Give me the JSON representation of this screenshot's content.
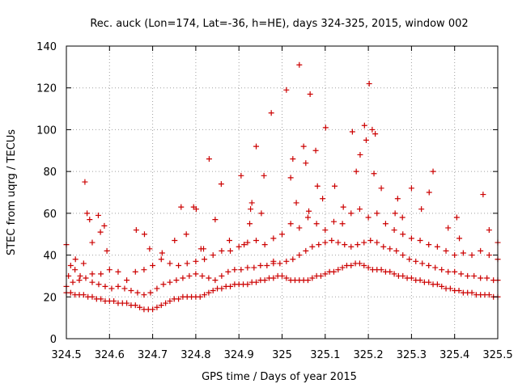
{
  "chart_data": {
    "type": "scatter",
    "title": "Rec. auck (Lon=174, Lat=-36, h=HE), days 324-325, 2015, window 002",
    "xlabel": "GPS time / Days of year 2015",
    "ylabel": "STEC from uqrg / TECUs",
    "xlim": [
      324.5,
      325.5
    ],
    "ylim": [
      0,
      140
    ],
    "x_ticks": [
      324.5,
      324.6,
      324.7,
      324.8,
      324.9,
      325.0,
      325.1,
      325.2,
      325.3,
      325.4,
      325.5
    ],
    "x_tick_labels": [
      "324.5",
      "324.6",
      "324.7",
      "324.8",
      "324.9",
      "325",
      "325.1",
      "325.2",
      "325.3",
      "325.4",
      "325.5"
    ],
    "y_ticks": [
      0,
      20,
      40,
      60,
      80,
      100,
      120,
      140
    ],
    "y_tick_labels": [
      "0",
      "20",
      "40",
      "60",
      "80",
      "100",
      "120",
      "140"
    ],
    "grid": true,
    "legend": "none",
    "marker": "plus",
    "color": "#cc0000",
    "series": [
      {
        "points": [
          [
            324.5,
            45
          ],
          [
            324.51,
            35
          ],
          [
            324.521,
            38
          ],
          [
            324.532,
            30
          ],
          [
            324.543,
            75
          ],
          [
            324.548,
            60
          ],
          [
            324.554,
            57
          ],
          [
            324.56,
            46
          ],
          [
            324.574,
            59
          ],
          [
            324.579,
            51
          ],
          [
            324.588,
            54
          ],
          [
            324.594,
            42
          ],
          [
            324.662,
            52
          ],
          [
            324.681,
            50
          ],
          [
            324.693,
            43
          ],
          [
            324.722,
            41
          ],
          [
            324.751,
            47
          ],
          [
            324.766,
            63
          ],
          [
            324.778,
            50
          ],
          [
            324.795,
            63
          ],
          [
            324.801,
            62
          ],
          [
            324.812,
            43
          ],
          [
            324.818,
            43
          ],
          [
            324.831,
            86
          ],
          [
            324.845,
            57
          ],
          [
            324.859,
            74
          ],
          [
            324.878,
            47
          ],
          [
            324.905,
            78
          ],
          [
            324.912,
            45
          ],
          [
            324.925,
            55
          ],
          [
            324.927,
            62
          ],
          [
            324.93,
            65
          ],
          [
            324.94,
            92
          ],
          [
            324.952,
            60
          ],
          [
            324.958,
            78
          ],
          [
            324.975,
            108
          ],
          [
            324.98,
            37
          ],
          [
            325.01,
            119
          ],
          [
            325.02,
            77
          ],
          [
            325.025,
            86
          ],
          [
            325.033,
            65
          ],
          [
            325.04,
            131
          ],
          [
            325.05,
            92
          ],
          [
            325.055,
            84
          ],
          [
            325.062,
            61
          ],
          [
            325.065,
            117
          ],
          [
            325.078,
            90
          ],
          [
            325.082,
            73
          ],
          [
            325.094,
            67
          ],
          [
            325.101,
            101
          ],
          [
            325.122,
            73
          ],
          [
            325.142,
            63
          ],
          [
            325.163,
            99
          ],
          [
            325.172,
            80
          ],
          [
            325.181,
            88
          ],
          [
            325.191,
            102
          ],
          [
            325.195,
            95
          ],
          [
            325.202,
            122
          ],
          [
            325.209,
            100
          ],
          [
            325.213,
            79
          ],
          [
            325.216,
            98
          ],
          [
            325.23,
            72
          ],
          [
            325.262,
            60
          ],
          [
            325.268,
            67
          ],
          [
            325.279,
            58
          ],
          [
            325.3,
            72
          ],
          [
            325.323,
            62
          ],
          [
            325.341,
            70
          ],
          [
            325.35,
            80
          ],
          [
            325.385,
            53
          ],
          [
            325.405,
            58
          ],
          [
            325.411,
            48
          ],
          [
            325.466,
            69
          ],
          [
            325.48,
            52
          ],
          [
            325.5,
            46
          ],
          [
            324.505,
            30
          ],
          [
            324.52,
            33
          ],
          [
            324.54,
            36
          ],
          [
            324.56,
            31
          ],
          [
            324.58,
            31
          ],
          [
            324.6,
            33
          ],
          [
            324.62,
            32
          ],
          [
            324.64,
            28
          ],
          [
            324.66,
            32
          ],
          [
            324.68,
            33
          ],
          [
            324.7,
            35
          ],
          [
            324.72,
            38
          ],
          [
            324.74,
            36
          ],
          [
            324.76,
            35
          ],
          [
            324.78,
            36
          ],
          [
            324.8,
            37
          ],
          [
            324.82,
            38
          ],
          [
            324.84,
            40
          ],
          [
            324.86,
            42
          ],
          [
            324.88,
            42
          ],
          [
            324.9,
            44
          ],
          [
            324.92,
            46
          ],
          [
            324.94,
            47
          ],
          [
            324.96,
            45
          ],
          [
            324.98,
            48
          ],
          [
            325.0,
            50
          ],
          [
            325.02,
            55
          ],
          [
            325.04,
            53
          ],
          [
            325.06,
            58
          ],
          [
            325.08,
            55
          ],
          [
            325.1,
            52
          ],
          [
            325.12,
            56
          ],
          [
            325.14,
            55
          ],
          [
            325.16,
            60
          ],
          [
            325.18,
            62
          ],
          [
            325.2,
            58
          ],
          [
            325.22,
            60
          ],
          [
            325.24,
            55
          ],
          [
            325.26,
            52
          ],
          [
            325.28,
            50
          ],
          [
            325.3,
            48
          ],
          [
            325.32,
            47
          ],
          [
            325.34,
            45
          ],
          [
            325.36,
            44
          ],
          [
            325.38,
            42
          ],
          [
            325.4,
            40
          ],
          [
            325.42,
            41
          ],
          [
            325.44,
            40
          ],
          [
            325.46,
            42
          ],
          [
            325.48,
            40
          ],
          [
            325.5,
            38
          ],
          [
            324.5,
            25
          ],
          [
            324.515,
            27
          ],
          [
            324.53,
            28
          ],
          [
            324.545,
            29
          ],
          [
            324.56,
            27
          ],
          [
            324.575,
            26
          ],
          [
            324.59,
            25
          ],
          [
            324.605,
            24
          ],
          [
            324.62,
            25
          ],
          [
            324.635,
            24
          ],
          [
            324.65,
            23
          ],
          [
            324.665,
            22
          ],
          [
            324.68,
            21
          ],
          [
            324.695,
            22
          ],
          [
            324.71,
            24
          ],
          [
            324.725,
            26
          ],
          [
            324.74,
            27
          ],
          [
            324.755,
            28
          ],
          [
            324.77,
            29
          ],
          [
            324.785,
            30
          ],
          [
            324.8,
            31
          ],
          [
            324.815,
            30
          ],
          [
            324.83,
            29
          ],
          [
            324.845,
            28
          ],
          [
            324.86,
            30
          ],
          [
            324.875,
            32
          ],
          [
            324.89,
            33
          ],
          [
            324.905,
            33
          ],
          [
            324.92,
            34
          ],
          [
            324.935,
            34
          ],
          [
            324.95,
            35
          ],
          [
            324.965,
            35
          ],
          [
            324.98,
            36
          ],
          [
            324.995,
            36
          ],
          [
            325.01,
            37
          ],
          [
            325.025,
            38
          ],
          [
            325.04,
            40
          ],
          [
            325.055,
            42
          ],
          [
            325.07,
            44
          ],
          [
            325.085,
            45
          ],
          [
            325.1,
            46
          ],
          [
            325.115,
            47
          ],
          [
            325.13,
            46
          ],
          [
            325.145,
            45
          ],
          [
            325.16,
            44
          ],
          [
            325.175,
            45
          ],
          [
            325.19,
            46
          ],
          [
            325.205,
            47
          ],
          [
            325.22,
            46
          ],
          [
            325.235,
            44
          ],
          [
            325.25,
            43
          ],
          [
            325.265,
            42
          ],
          [
            325.28,
            40
          ],
          [
            325.295,
            38
          ],
          [
            325.31,
            37
          ],
          [
            325.325,
            36
          ],
          [
            325.34,
            35
          ],
          [
            325.355,
            34
          ],
          [
            325.37,
            33
          ],
          [
            325.385,
            32
          ],
          [
            325.4,
            32
          ],
          [
            325.415,
            31
          ],
          [
            325.43,
            30
          ],
          [
            325.445,
            30
          ],
          [
            325.46,
            29
          ],
          [
            325.475,
            29
          ],
          [
            325.49,
            28
          ],
          [
            325.5,
            28
          ],
          [
            324.5,
            22
          ],
          [
            324.51,
            22
          ],
          [
            324.52,
            21
          ],
          [
            324.53,
            21
          ],
          [
            324.54,
            21
          ],
          [
            324.55,
            20
          ],
          [
            324.56,
            20
          ],
          [
            324.57,
            19
          ],
          [
            324.58,
            19
          ],
          [
            324.59,
            18
          ],
          [
            324.6,
            18
          ],
          [
            324.61,
            18
          ],
          [
            324.62,
            17
          ],
          [
            324.63,
            17
          ],
          [
            324.64,
            17
          ],
          [
            324.65,
            16
          ],
          [
            324.66,
            16
          ],
          [
            324.67,
            15
          ],
          [
            324.68,
            14
          ],
          [
            324.69,
            14
          ],
          [
            324.7,
            14
          ],
          [
            324.71,
            15
          ],
          [
            324.72,
            16
          ],
          [
            324.73,
            17
          ],
          [
            324.74,
            18
          ],
          [
            324.75,
            19
          ],
          [
            324.76,
            19
          ],
          [
            324.77,
            20
          ],
          [
            324.78,
            20
          ],
          [
            324.79,
            20
          ],
          [
            324.8,
            20
          ],
          [
            324.81,
            20
          ],
          [
            324.82,
            21
          ],
          [
            324.83,
            22
          ],
          [
            324.84,
            23
          ],
          [
            324.85,
            24
          ],
          [
            324.86,
            24
          ],
          [
            324.87,
            25
          ],
          [
            324.88,
            25
          ],
          [
            324.89,
            26
          ],
          [
            324.9,
            26
          ],
          [
            324.91,
            26
          ],
          [
            324.92,
            26
          ],
          [
            324.93,
            27
          ],
          [
            324.94,
            27
          ],
          [
            324.95,
            28
          ],
          [
            324.96,
            28
          ],
          [
            324.97,
            29
          ],
          [
            324.98,
            29
          ],
          [
            324.99,
            30
          ],
          [
            325.0,
            30
          ],
          [
            325.01,
            29
          ],
          [
            325.02,
            28
          ],
          [
            325.03,
            28
          ],
          [
            325.04,
            28
          ],
          [
            325.05,
            28
          ],
          [
            325.06,
            28
          ],
          [
            325.07,
            29
          ],
          [
            325.08,
            30
          ],
          [
            325.09,
            30
          ],
          [
            325.1,
            31
          ],
          [
            325.11,
            32
          ],
          [
            325.12,
            32
          ],
          [
            325.13,
            33
          ],
          [
            325.14,
            34
          ],
          [
            325.15,
            35
          ],
          [
            325.16,
            35
          ],
          [
            325.17,
            36
          ],
          [
            325.18,
            36
          ],
          [
            325.19,
            35
          ],
          [
            325.2,
            34
          ],
          [
            325.21,
            33
          ],
          [
            325.22,
            33
          ],
          [
            325.23,
            33
          ],
          [
            325.24,
            32
          ],
          [
            325.25,
            32
          ],
          [
            325.26,
            31
          ],
          [
            325.27,
            30
          ],
          [
            325.28,
            30
          ],
          [
            325.29,
            29
          ],
          [
            325.3,
            29
          ],
          [
            325.31,
            28
          ],
          [
            325.32,
            28
          ],
          [
            325.33,
            27
          ],
          [
            325.34,
            27
          ],
          [
            325.35,
            26
          ],
          [
            325.36,
            26
          ],
          [
            325.37,
            25
          ],
          [
            325.38,
            24
          ],
          [
            325.39,
            24
          ],
          [
            325.4,
            23
          ],
          [
            325.41,
            23
          ],
          [
            325.42,
            22
          ],
          [
            325.43,
            22
          ],
          [
            325.44,
            22
          ],
          [
            325.45,
            21
          ],
          [
            325.46,
            21
          ],
          [
            325.47,
            21
          ],
          [
            325.48,
            21
          ],
          [
            325.49,
            20
          ],
          [
            325.5,
            20
          ]
        ]
      }
    ]
  }
}
